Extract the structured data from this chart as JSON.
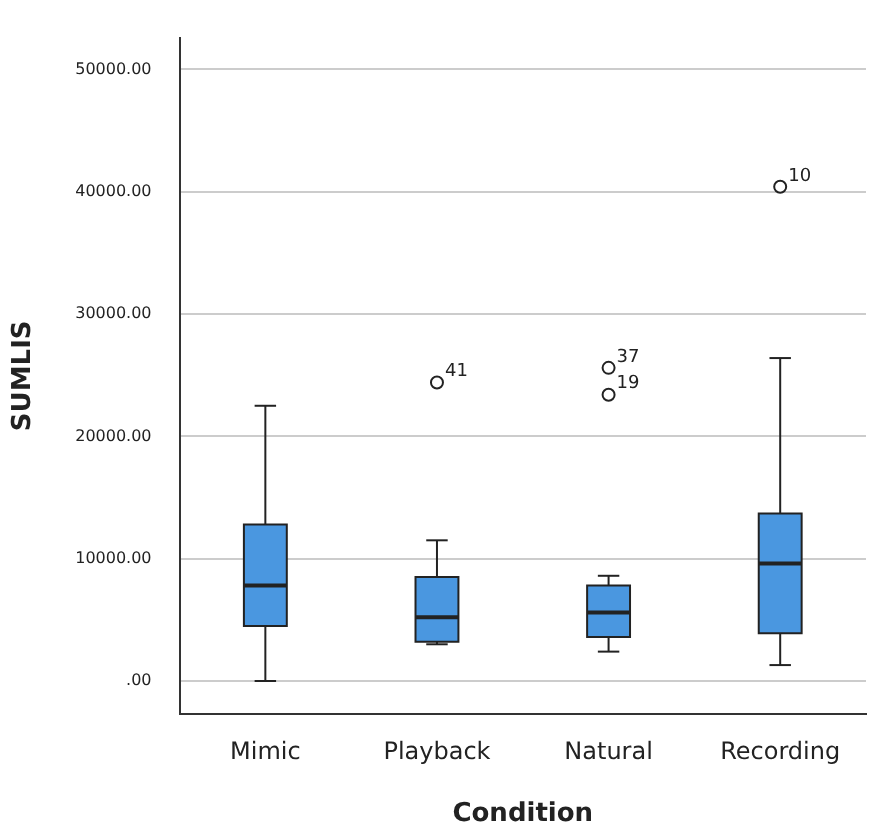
{
  "chart_data": {
    "type": "box",
    "xlabel": "Condition",
    "ylabel": "SUMLIS",
    "categories": [
      "Mimic",
      "Playback",
      "Natural",
      "Recording"
    ],
    "color": "#4a97e0",
    "boxes": [
      {
        "low": 0,
        "q1": 4500,
        "median": 7800,
        "q3": 12800,
        "high": 22500
      },
      {
        "low": 3000,
        "q1": 3200,
        "median": 5200,
        "q3": 8500,
        "high": 11500,
        "outliers": [
          24400
        ]
      },
      {
        "low": 2400,
        "q1": 3600,
        "median": 5600,
        "q3": 7800,
        "high": 8600,
        "outliers": [
          25600,
          23400
        ]
      },
      {
        "low": 1300,
        "q1": 3900,
        "median": 9600,
        "q3": 13700,
        "high": 26400,
        "outliers": [
          40400
        ]
      }
    ],
    "ylim": [
      -2700,
      52600
    ],
    "yticks": [
      {
        "value": 0,
        "label": ".00"
      },
      {
        "value": 10000,
        "label": "10000.00"
      },
      {
        "value": 20000,
        "label": "20000.00"
      },
      {
        "value": 30000,
        "label": "30000.00"
      },
      {
        "value": 40000,
        "label": "40000.00"
      },
      {
        "value": 50000,
        "label": "50000.00"
      }
    ],
    "grid": "y",
    "legend": false,
    "marker": "circle",
    "annotations": [
      "41",
      "37",
      "19",
      "10"
    ]
  }
}
